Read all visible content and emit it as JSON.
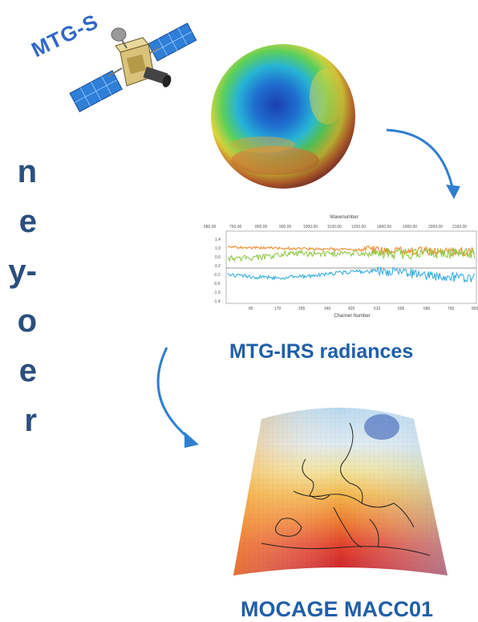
{
  "left_text": {
    "lines": [
      "n",
      "e",
      "y-",
      "o",
      "e",
      "r"
    ]
  },
  "satellite": {
    "label": "MTG-S",
    "icon": "satellite-icon"
  },
  "globe": {
    "icon": "ozone-globe-icon"
  },
  "spectrum_plot": {
    "top_axis_title": "Wavenumber",
    "bottom_axis_title": "Channel Number",
    "top_ticks": [
      "680.00",
      "750.00",
      "800.00",
      "900.00",
      "1000.00",
      "1100.00",
      "1200.00",
      "1800.00",
      "1900.00",
      "2000.00",
      "2100.00"
    ],
    "bottom_ticks": [
      "85",
      "170",
      "255",
      "340",
      "425",
      "510",
      "595",
      "680",
      "765",
      "850"
    ],
    "y_ticks": [
      "1.4",
      "1.0",
      "0.6",
      "0.2",
      "-0.2",
      "-0.6",
      "-1.0",
      "-1.4"
    ],
    "colors": {
      "orange": "#f0913a",
      "green": "#8cc63f",
      "blue": "#29a8e0"
    }
  },
  "captions": {
    "irs": "MTG-IRS radiances",
    "mocage": "MOCAGE MACC01"
  },
  "map": {
    "icon": "europe-temperature-map-icon"
  },
  "arrows": {
    "color": "#2e7fd0"
  }
}
